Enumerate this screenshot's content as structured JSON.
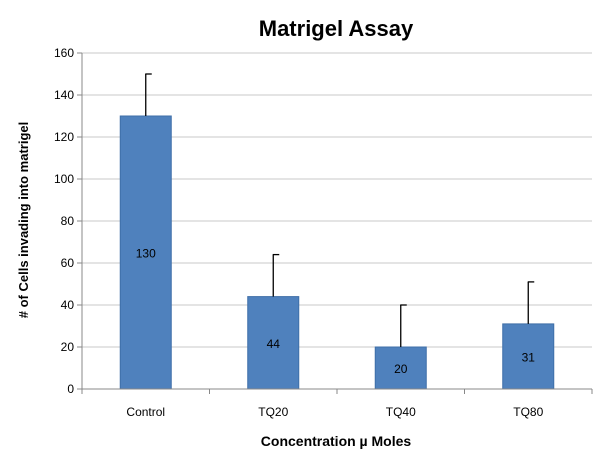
{
  "chart_data": {
    "type": "bar",
    "title": "Matrigel Assay",
    "xlabel": "Concentration µ Moles",
    "ylabel": "# of Cells invading into matrigel",
    "categories": [
      "Control",
      "TQ20",
      "TQ40",
      "TQ80"
    ],
    "values": [
      130,
      44,
      20,
      31
    ],
    "error_upper": [
      150,
      64,
      40,
      51
    ],
    "data_labels": [
      "130",
      "44",
      "20",
      "31"
    ],
    "yticks": [
      "0",
      "20",
      "40",
      "60",
      "80",
      "100",
      "120",
      "140",
      "160"
    ],
    "ylim": [
      0,
      160
    ],
    "grid": true,
    "legend": "none",
    "colors": {
      "bar": "#4f81bd",
      "bar_edge": "#3f6fa8",
      "grid": "#c8c8c8",
      "axis": "#888888"
    }
  }
}
